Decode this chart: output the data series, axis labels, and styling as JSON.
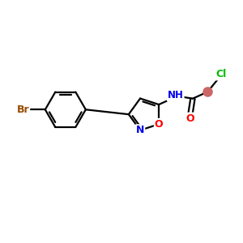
{
  "background_color": "#ffffff",
  "atom_colors": {
    "C": "#000000",
    "N": "#0000ee",
    "O": "#ff0000",
    "Br": "#964B00",
    "Cl": "#00bb00",
    "H": "#000000"
  },
  "bond_color": "#000000",
  "figsize": [
    3.0,
    3.0
  ],
  "dpi": 100,
  "ch2_color": "#cc6666",
  "o_highlight": "#dd7777"
}
